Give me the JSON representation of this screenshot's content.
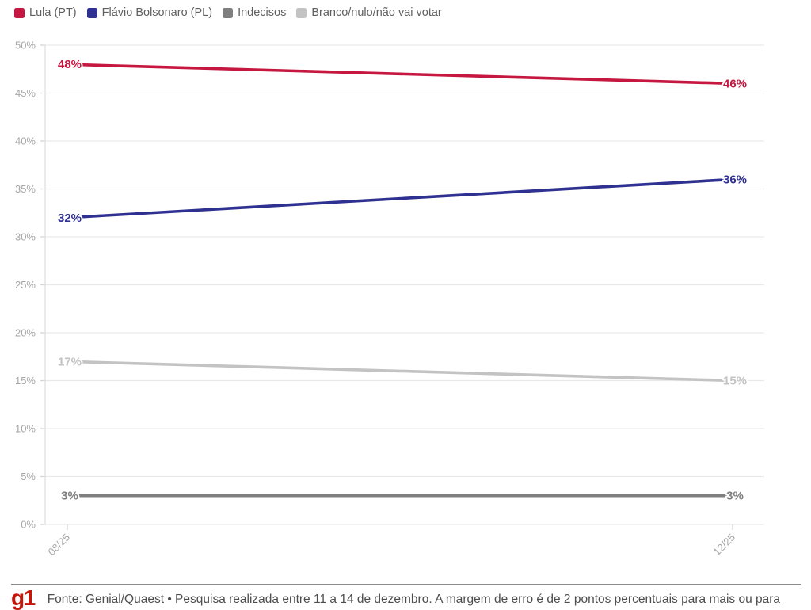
{
  "chart_data": {
    "type": "line",
    "title": "",
    "x": [
      "08/25",
      "12/25"
    ],
    "series": [
      {
        "name": "Lula (PT)",
        "color": "#C5173F",
        "values": [
          48,
          46
        ]
      },
      {
        "name": "Flávio Bolsonaro (PL)",
        "color": "#2F3191",
        "values": [
          32,
          36
        ]
      },
      {
        "name": "Indecisos",
        "color": "#7F7F7F",
        "values": [
          3,
          3
        ]
      },
      {
        "name": "Branco/nulo/não vai votar",
        "color": "#C3C3C3",
        "values": [
          17,
          15
        ]
      }
    ],
    "ylim": [
      0,
      50
    ],
    "ytick_step": 5,
    "ytick_suffix": "%",
    "grid": true,
    "legend_position": "top-left",
    "data_label_suffix": "%"
  },
  "footer": {
    "logo_text": "g1",
    "logo_color": "#C4170C",
    "source_text": "Fonte: Genial/Quaest • Pesquisa realizada entre 11 a 14 de dezembro. A margem de erro é de 2 pontos percentuais para mais ou para"
  }
}
